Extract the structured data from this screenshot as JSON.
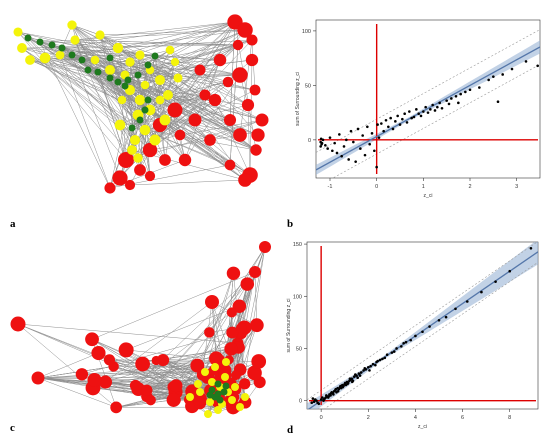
{
  "panels": {
    "a": {
      "letter": "a"
    },
    "b": {
      "letter": "b"
    },
    "c": {
      "letter": "c"
    },
    "d": {
      "letter": "d"
    }
  },
  "colors": {
    "edge": "#8f8f8f",
    "red": "#ee1111",
    "yellow": "#f4f40a",
    "green": "#1e7a1e",
    "point": "#000000",
    "fit_line": "#5577aa",
    "ci_band": "#9ab4d6",
    "axis_ref": "#dd0000",
    "pred_band": "#999999"
  },
  "chart_data": [
    {
      "panel": "a",
      "type": "network",
      "node_groups": [
        "red",
        "yellow",
        "green"
      ],
      "node_counts_approx": {
        "red": 45,
        "yellow": 45,
        "green": 22
      }
    },
    {
      "panel": "b",
      "type": "scatter",
      "xlabel": "z_ci",
      "ylabel": "sum of Surrounding z_ci",
      "xlim": [
        -1.3,
        3.5
      ],
      "ylim": [
        -35,
        110
      ],
      "xticks": [
        -1,
        0,
        1,
        2,
        3
      ],
      "xtick_labels": [
        "-1",
        "0",
        "1",
        "2",
        "3"
      ],
      "yticks": [
        0,
        50,
        100
      ],
      "ytick_labels": [
        "0",
        "50",
        "100"
      ],
      "fit": {
        "slope": 23.5,
        "intercept": 3
      },
      "prediction_band_halfwidth": 16,
      "reference_lines": {
        "x": 0,
        "y": 0
      },
      "points": [
        [
          -1.2,
          -2
        ],
        [
          -1.18,
          -4
        ],
        [
          -1.15,
          0
        ],
        [
          -1.1,
          -5
        ],
        [
          -1.05,
          -8
        ],
        [
          -1.0,
          2
        ],
        [
          -0.95,
          -10
        ],
        [
          -0.9,
          -3
        ],
        [
          -0.85,
          -12
        ],
        [
          -0.8,
          5
        ],
        [
          -0.75,
          -15
        ],
        [
          -0.7,
          -6
        ],
        [
          -0.65,
          0
        ],
        [
          -0.6,
          -18
        ],
        [
          -0.55,
          8
        ],
        [
          -0.5,
          -2
        ],
        [
          -0.45,
          -20
        ],
        [
          -0.4,
          10
        ],
        [
          -0.35,
          -8
        ],
        [
          -0.3,
          4
        ],
        [
          -0.25,
          -14
        ],
        [
          -0.2,
          12
        ],
        [
          -0.15,
          -4
        ],
        [
          -0.1,
          6
        ],
        [
          -0.05,
          -10
        ],
        [
          0.0,
          -25
        ],
        [
          0.02,
          14
        ],
        [
          0.05,
          2
        ],
        [
          0.1,
          15
        ],
        [
          0.15,
          8
        ],
        [
          0.2,
          18
        ],
        [
          0.25,
          12
        ],
        [
          0.3,
          20
        ],
        [
          0.35,
          10
        ],
        [
          0.4,
          17
        ],
        [
          0.45,
          22
        ],
        [
          0.5,
          14
        ],
        [
          0.55,
          19
        ],
        [
          0.6,
          24
        ],
        [
          0.65,
          16
        ],
        [
          0.7,
          26
        ],
        [
          0.75,
          20
        ],
        [
          0.8,
          21
        ],
        [
          0.85,
          28
        ],
        [
          0.9,
          24
        ],
        [
          0.95,
          22
        ],
        [
          1.0,
          26
        ],
        [
          1.05,
          30
        ],
        [
          1.1,
          25
        ],
        [
          1.15,
          28
        ],
        [
          1.2,
          32
        ],
        [
          1.25,
          27
        ],
        [
          1.3,
          30
        ],
        [
          1.35,
          34
        ],
        [
          1.4,
          29
        ],
        [
          1.5,
          36
        ],
        [
          1.55,
          33
        ],
        [
          1.6,
          38
        ],
        [
          1.7,
          40
        ],
        [
          1.75,
          34
        ],
        [
          1.8,
          42
        ],
        [
          1.9,
          44
        ],
        [
          2.0,
          46
        ],
        [
          2.2,
          48
        ],
        [
          2.4,
          55
        ],
        [
          2.5,
          58
        ],
        [
          2.6,
          35
        ],
        [
          2.7,
          60
        ],
        [
          2.9,
          65
        ],
        [
          3.2,
          72
        ],
        [
          3.45,
          68
        ],
        [
          -1.2,
          -6
        ],
        [
          -1.19,
          1
        ],
        [
          -1.17,
          -3
        ]
      ]
    },
    {
      "panel": "c",
      "type": "network",
      "node_groups": [
        "red",
        "yellow",
        "green"
      ],
      "node_counts_approx": {
        "red": 90,
        "yellow": 20,
        "green": 8
      }
    },
    {
      "panel": "d",
      "type": "scatter",
      "xlabel": "z_ci",
      "ylabel": "sum of Surrounding z_ci",
      "xlim": [
        -0.6,
        9.2
      ],
      "ylim": [
        -8,
        152
      ],
      "xticks": [
        0,
        2,
        4,
        6,
        8
      ],
      "xtick_labels": [
        "0",
        "2",
        "4",
        "6",
        "8"
      ],
      "yticks": [
        0,
        50,
        100,
        150
      ],
      "ytick_labels": [
        "0",
        "50",
        "100",
        "150"
      ],
      "fit": {
        "slope": 15.5,
        "intercept": 0
      },
      "prediction_band_halfwidth": 10,
      "reference_lines": {
        "x": 0,
        "y": 0
      },
      "points": [
        [
          -0.4,
          -2
        ],
        [
          -0.3,
          -1
        ],
        [
          -0.2,
          0
        ],
        [
          -0.1,
          -3
        ],
        [
          0.0,
          1
        ],
        [
          0.1,
          0
        ],
        [
          0.15,
          2
        ],
        [
          0.2,
          3
        ],
        [
          0.25,
          4
        ],
        [
          0.3,
          3
        ],
        [
          0.35,
          6
        ],
        [
          0.4,
          5
        ],
        [
          0.45,
          8
        ],
        [
          0.5,
          7
        ],
        [
          0.55,
          9
        ],
        [
          0.6,
          10
        ],
        [
          0.65,
          8
        ],
        [
          0.7,
          12
        ],
        [
          0.75,
          11
        ],
        [
          0.8,
          13
        ],
        [
          0.85,
          12
        ],
        [
          0.9,
          15
        ],
        [
          0.95,
          14
        ],
        [
          1.0,
          16
        ],
        [
          1.05,
          15
        ],
        [
          1.1,
          18
        ],
        [
          1.15,
          17
        ],
        [
          1.2,
          19
        ],
        [
          1.25,
          20
        ],
        [
          1.3,
          21
        ],
        [
          1.35,
          19
        ],
        [
          1.4,
          23
        ],
        [
          1.5,
          24
        ],
        [
          1.55,
          22
        ],
        [
          1.6,
          26
        ],
        [
          1.7,
          27
        ],
        [
          1.8,
          29
        ],
        [
          1.9,
          30
        ],
        [
          2.0,
          32
        ],
        [
          2.1,
          33
        ],
        [
          2.2,
          35
        ],
        [
          2.3,
          34
        ],
        [
          2.4,
          38
        ],
        [
          2.5,
          39
        ],
        [
          2.6,
          40
        ],
        [
          2.8,
          44
        ],
        [
          3.0,
          46
        ],
        [
          3.2,
          50
        ],
        [
          3.4,
          52
        ],
        [
          3.6,
          56
        ],
        [
          3.8,
          58
        ],
        [
          4.0,
          62
        ],
        [
          4.3,
          66
        ],
        [
          4.6,
          71
        ],
        [
          5.0,
          77
        ],
        [
          5.3,
          80
        ],
        [
          5.7,
          88
        ],
        [
          6.2,
          95
        ],
        [
          6.8,
          104
        ],
        [
          7.4,
          114
        ],
        [
          8.0,
          124
        ],
        [
          8.9,
          146
        ],
        [
          -0.35,
          2
        ],
        [
          -0.25,
          1
        ],
        [
          -0.15,
          -2
        ],
        [
          0.05,
          3
        ],
        [
          0.12,
          1
        ],
        [
          0.22,
          5
        ],
        [
          0.32,
          4
        ],
        [
          0.42,
          7
        ],
        [
          0.52,
          6
        ],
        [
          0.62,
          11
        ],
        [
          0.72,
          9
        ],
        [
          0.82,
          14
        ],
        [
          0.92,
          13
        ],
        [
          1.02,
          17
        ],
        [
          1.12,
          16
        ],
        [
          1.22,
          21
        ],
        [
          1.32,
          18
        ],
        [
          1.45,
          25
        ],
        [
          1.65,
          24
        ],
        [
          1.85,
          31
        ],
        [
          2.05,
          29
        ],
        [
          2.35,
          37
        ],
        [
          2.7,
          41
        ],
        [
          3.1,
          47
        ],
        [
          3.5,
          55
        ]
      ]
    }
  ]
}
